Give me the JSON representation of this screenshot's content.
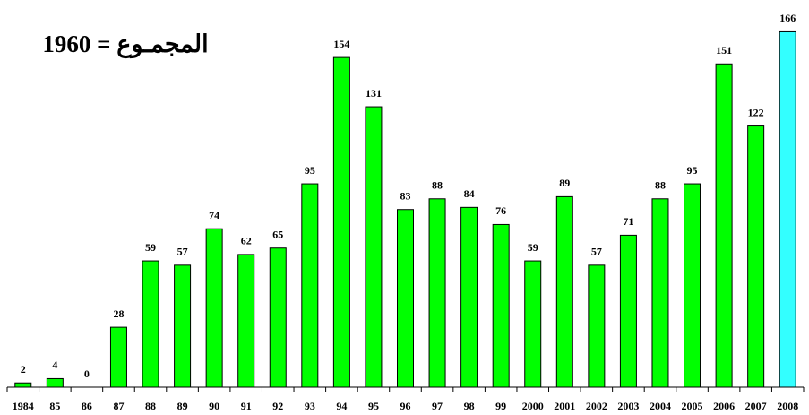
{
  "chart_data": {
    "type": "bar",
    "title": "المجمـوع = 1960",
    "categories": [
      "1984",
      "85",
      "86",
      "87",
      "88",
      "89",
      "90",
      "91",
      "92",
      "93",
      "94",
      "95",
      "96",
      "97",
      "98",
      "99",
      "2000",
      "2001",
      "2002",
      "2003",
      "2004",
      "2005",
      "2006",
      "2007",
      "2008"
    ],
    "values": [
      2,
      4,
      0,
      28,
      59,
      57,
      74,
      62,
      65,
      95,
      154,
      131,
      83,
      88,
      84,
      76,
      59,
      89,
      57,
      71,
      88,
      95,
      151,
      122,
      166
    ],
    "colors": [
      "#00ff00",
      "#00ff00",
      "#00ff00",
      "#00ff00",
      "#00ff00",
      "#00ff00",
      "#00ff00",
      "#00ff00",
      "#00ff00",
      "#00ff00",
      "#00ff00",
      "#00ff00",
      "#00ff00",
      "#00ff00",
      "#00ff00",
      "#00ff00",
      "#00ff00",
      "#00ff00",
      "#00ff00",
      "#00ff00",
      "#00ff00",
      "#00ff00",
      "#00ff00",
      "#00ff00",
      "#33ffff"
    ],
    "ylim": [
      0,
      180
    ]
  }
}
